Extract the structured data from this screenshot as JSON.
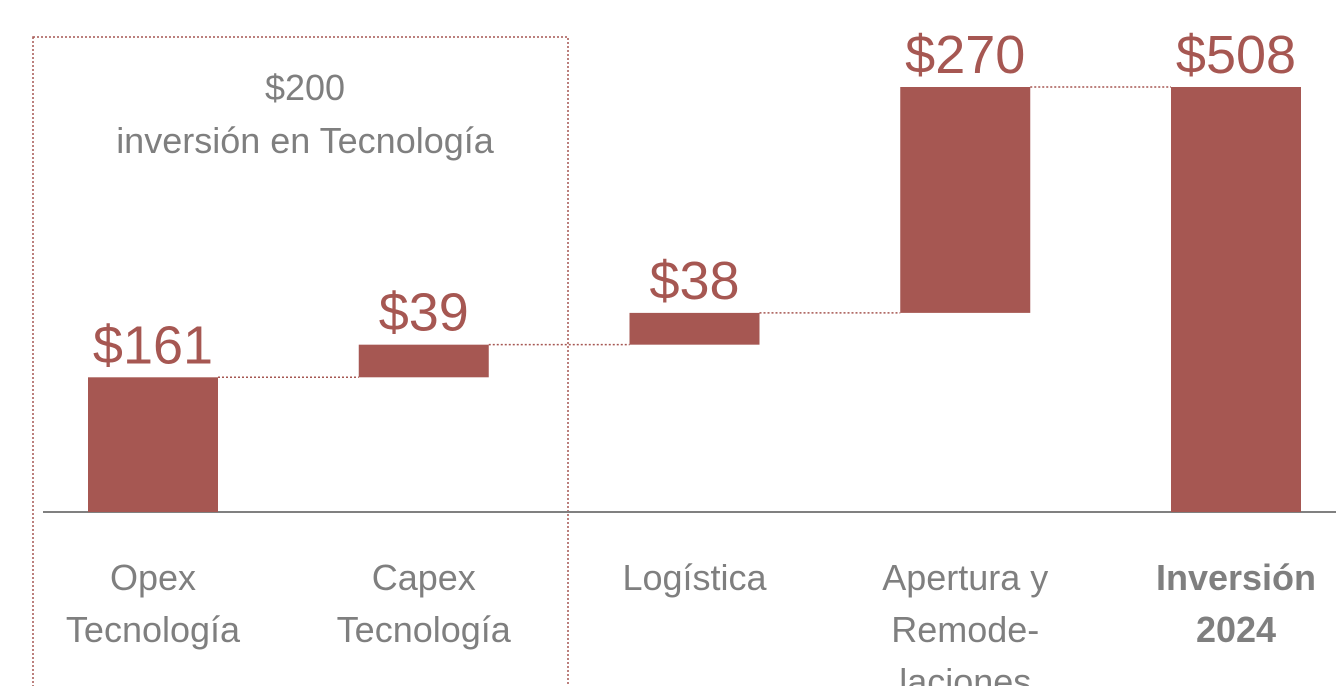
{
  "chart_data": {
    "type": "waterfall",
    "categories": [
      [
        "Opex",
        "Tecnología"
      ],
      [
        "Capex",
        "Tecnología"
      ],
      [
        "Logística"
      ],
      [
        "Apertura y",
        "Remode-",
        "laciones"
      ],
      [
        "Inversión",
        "2024"
      ]
    ],
    "values": [
      161,
      39,
      38,
      270,
      508
    ],
    "value_labels": [
      "$161",
      "$39",
      "$38",
      "$270",
      "$508"
    ],
    "is_total": [
      false,
      false,
      false,
      false,
      true
    ],
    "color": "#a65752",
    "annotation": {
      "label": "$200",
      "text": "inversión en Tecnología"
    }
  }
}
